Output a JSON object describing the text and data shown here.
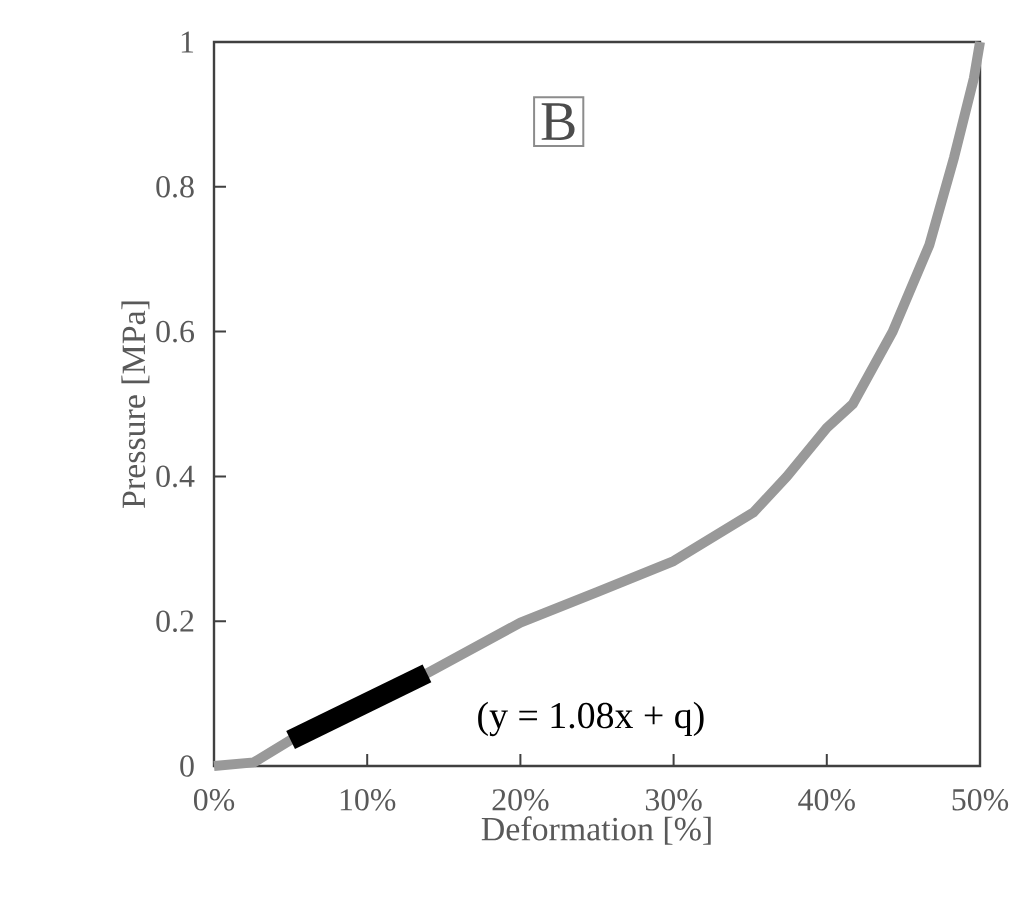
{
  "chart_data": {
    "type": "line",
    "xlabel": "Deformation [%]",
    "ylabel": "Pressure [MPa]",
    "xlim": [
      0,
      50
    ],
    "ylim": [
      0,
      1
    ],
    "xticks": [
      {
        "value": 0,
        "label": "0%"
      },
      {
        "value": 10,
        "label": "10%"
      },
      {
        "value": 20,
        "label": "20%"
      },
      {
        "value": 30,
        "label": "30%"
      },
      {
        "value": 40,
        "label": "40%"
      },
      {
        "value": 50,
        "label": "50%"
      }
    ],
    "yticks": [
      0,
      0.2,
      0.4,
      0.6,
      0.8,
      1
    ],
    "grid": false,
    "marker": "none",
    "line_style": "solid",
    "annotations": [
      "B",
      "(y = 1.08x + q)"
    ],
    "series": [
      {
        "color": "#999999",
        "x": [
          0,
          2.6,
          5,
          10,
          13.9,
          20,
          25,
          30,
          35.2,
          37.4,
          40,
          41.7,
          44.3,
          46.7,
          48.3,
          49.6,
          50
        ],
        "values": [
          0,
          0.005,
          0.036,
          0.085,
          0.128,
          0.198,
          0.24,
          0.283,
          0.35,
          0.4,
          0.467,
          0.5,
          0.6,
          0.72,
          0.84,
          0.95,
          1.0
        ]
      },
      {
        "color": "#000000",
        "x": [
          5,
          13.9
        ],
        "values": [
          0.036,
          0.128
        ]
      }
    ]
  }
}
